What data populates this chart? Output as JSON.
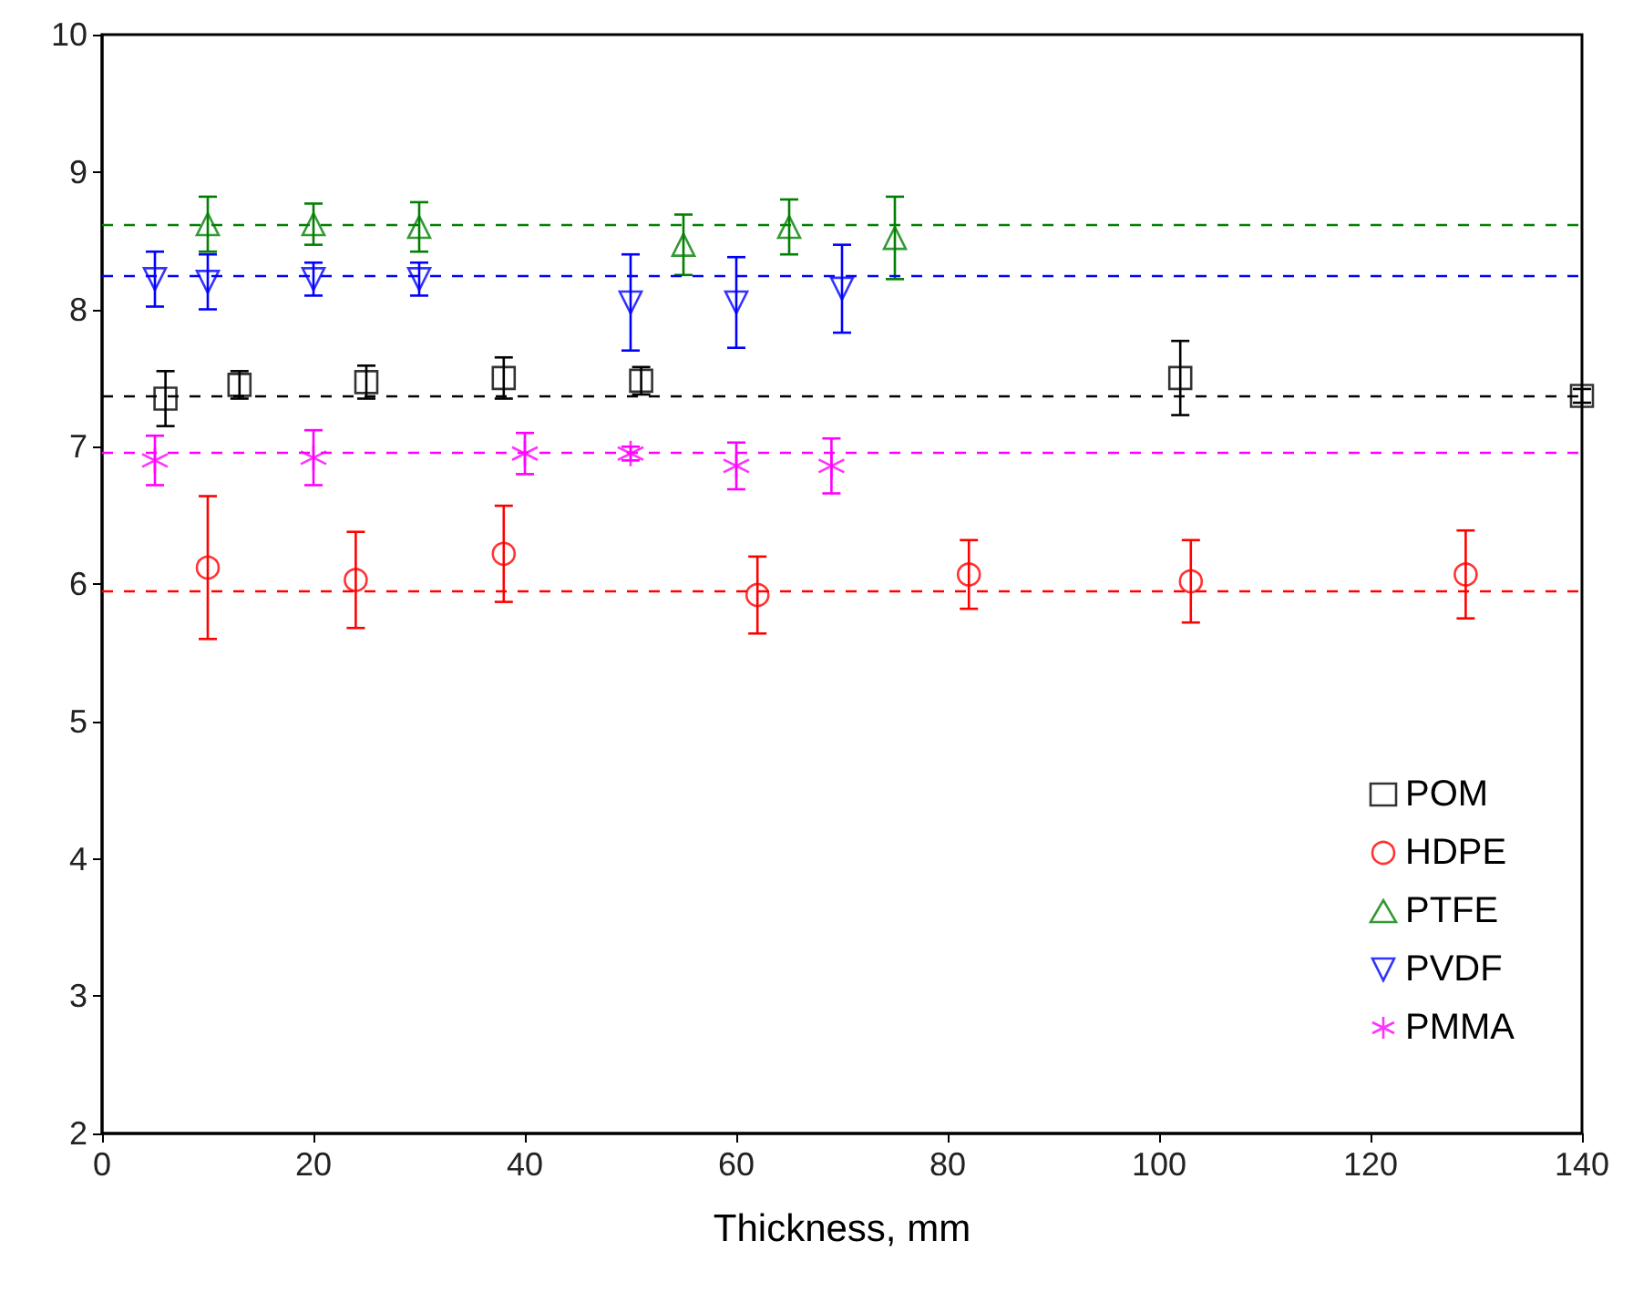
{
  "chart_data": {
    "type": "scatter",
    "xlabel": "Thickness, mm",
    "xlim": [
      0,
      140
    ],
    "xticks": [
      0,
      20,
      40,
      60,
      80,
      100,
      120,
      140
    ],
    "ylim": [
      2,
      10
    ],
    "yticks": [
      2,
      3,
      4,
      5,
      6,
      7,
      8,
      9,
      10
    ],
    "grid": false,
    "legend": "bottom right",
    "series": [
      {
        "name": "POM",
        "color": "#000000",
        "marker": "square",
        "x": [
          6,
          13,
          25,
          38,
          51,
          102,
          140
        ],
        "values": [
          7.35,
          7.45,
          7.47,
          7.5,
          7.48,
          7.5,
          7.37
        ],
        "errors": [
          0.2,
          0.1,
          0.12,
          0.15,
          0.1,
          0.27,
          0.05
        ]
      },
      {
        "name": "HDPE",
        "color": "#ff0000",
        "marker": "circle",
        "x": [
          10,
          24,
          38,
          62,
          82,
          103,
          129
        ],
        "values": [
          6.12,
          6.03,
          6.22,
          5.92,
          6.07,
          6.02,
          6.07
        ],
        "errors": [
          0.52,
          0.35,
          0.35,
          0.28,
          0.25,
          0.3,
          0.32
        ]
      },
      {
        "name": "PTFE",
        "color": "#008000",
        "marker": "triangle",
        "x": [
          10,
          20,
          30,
          55,
          65,
          75
        ],
        "values": [
          8.62,
          8.62,
          8.6,
          8.47,
          8.6,
          8.52
        ],
        "errors": [
          0.2,
          0.15,
          0.18,
          0.22,
          0.2,
          0.3
        ]
      },
      {
        "name": "PVDF",
        "color": "#0000ff",
        "marker": "triangle-down",
        "x": [
          5,
          10,
          20,
          30,
          50,
          60,
          70
        ],
        "values": [
          8.22,
          8.2,
          8.22,
          8.22,
          8.05,
          8.05,
          8.15
        ],
        "errors": [
          0.2,
          0.2,
          0.12,
          0.12,
          0.35,
          0.33,
          0.32
        ]
      },
      {
        "name": "PMMA",
        "color": "#ff00ff",
        "marker": "cross",
        "x": [
          5,
          20,
          40,
          50,
          60,
          69
        ],
        "values": [
          6.9,
          6.92,
          6.95,
          6.95,
          6.86,
          6.86
        ],
        "errors": [
          0.18,
          0.2,
          0.15,
          0.05,
          0.17,
          0.2
        ]
      }
    ],
    "ref_lines": [
      {
        "axis": "y",
        "value": 8.62,
        "color": "#008000",
        "line_style": "dashed"
      },
      {
        "axis": "y",
        "value": 8.25,
        "color": "#0000ff",
        "line_style": "dashed"
      },
      {
        "axis": "y",
        "value": 7.37,
        "color": "#000000",
        "line_style": "dashed"
      },
      {
        "axis": "y",
        "value": 6.96,
        "color": "#ff00ff",
        "line_style": "dashed"
      },
      {
        "axis": "y",
        "value": 5.95,
        "color": "#ff0000",
        "line_style": "dashed"
      }
    ]
  }
}
